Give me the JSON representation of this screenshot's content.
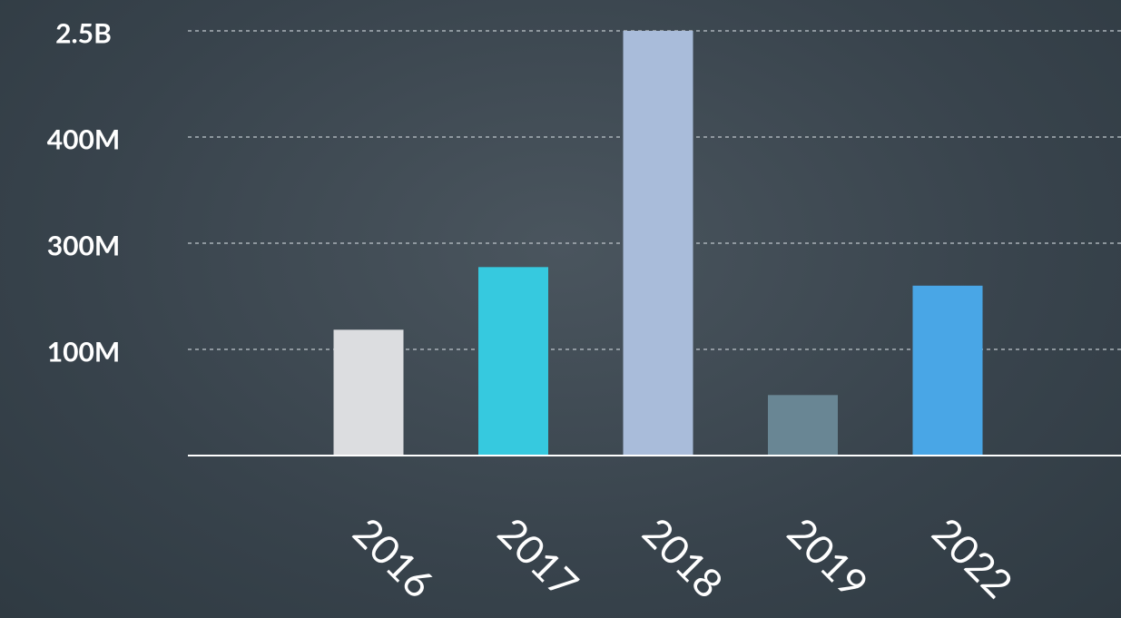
{
  "chart_data": {
    "type": "bar",
    "categories": [
      "2016",
      "2017",
      "2018",
      "2019",
      "2022"
    ],
    "values": [
      137000000,
      255000000,
      2500000000,
      57000000,
      220000000
    ],
    "colors": [
      "#dcdde0",
      "#36c9df",
      "#a9bcda",
      "#698694",
      "#49a6e6"
    ],
    "ylim": [
      0,
      2500000000
    ],
    "yticks": [
      {
        "value": 100000000,
        "label": "100M"
      },
      {
        "value": 300000000,
        "label": "300M"
      },
      {
        "value": 400000000,
        "label": "400M"
      },
      {
        "value": 2500000000,
        "label": "2.5B"
      }
    ],
    "grid": true
  }
}
